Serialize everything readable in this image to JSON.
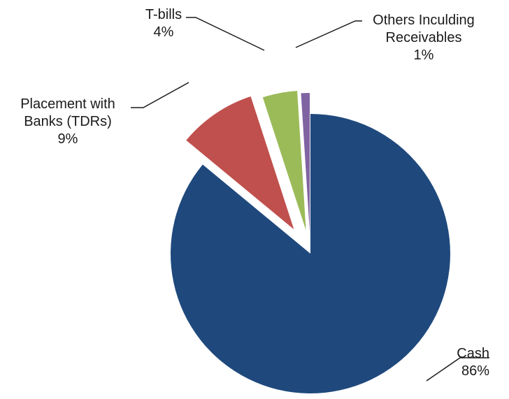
{
  "chart_data": {
    "type": "pie",
    "title": "",
    "slices": [
      {
        "label_lines": [
          "Cash"
        ],
        "value": 86,
        "value_label": "86%",
        "color": "#1F497D"
      },
      {
        "label_lines": [
          "Placement with",
          "Banks (TDRs)"
        ],
        "value": 9,
        "value_label": "9%",
        "color": "#C0504D"
      },
      {
        "label_lines": [
          "T-bills"
        ],
        "value": 4,
        "value_label": "4%",
        "color": "#9BBB59"
      },
      {
        "label_lines": [
          "Others Inculding",
          "Receivables"
        ],
        "value": 1,
        "value_label": "1%",
        "color": "#8064A2"
      }
    ],
    "legend": "none",
    "leader_line_color": "#1a1a1a"
  }
}
